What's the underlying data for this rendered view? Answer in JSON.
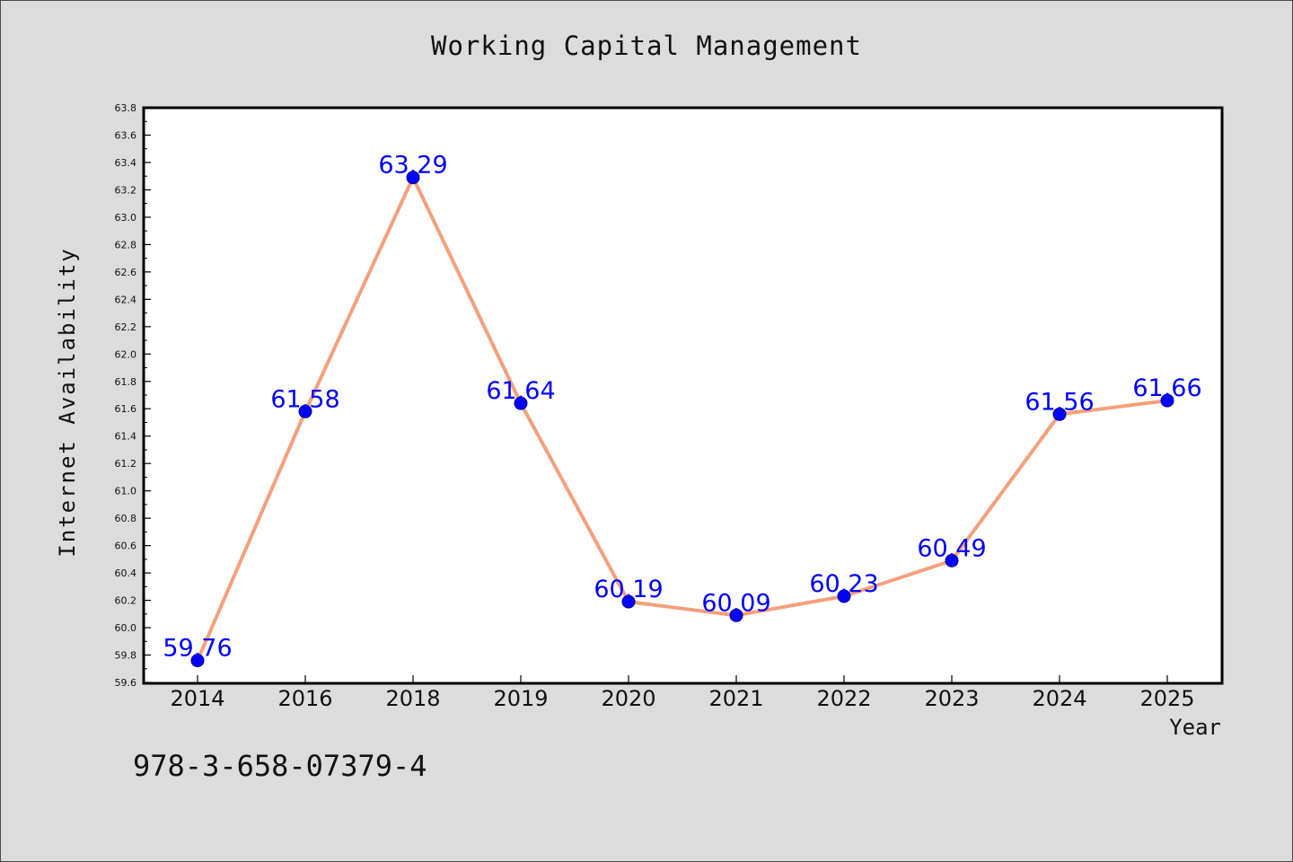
{
  "chart_data": {
    "type": "line",
    "title": "Working Capital Management",
    "xlabel": "Year",
    "ylabel": "Internet Availability",
    "categories": [
      "2014",
      "2016",
      "2018",
      "2019",
      "2020",
      "2021",
      "2022",
      "2023",
      "2024",
      "2025"
    ],
    "series": [
      {
        "values": [
          59.76,
          61.58,
          63.29,
          61.64,
          60.19,
          60.09,
          60.23,
          60.49,
          61.56,
          61.66
        ]
      }
    ],
    "data_labels": [
      "59.76",
      "61.58",
      "63.29",
      "61.64",
      "60.19",
      "60.09",
      "60.23",
      "60.49",
      "61.56",
      "61.66"
    ],
    "ylim": [
      59.6,
      63.8
    ],
    "yticks": [
      "59.6",
      "59.8",
      "60.0",
      "60.2",
      "60.4",
      "60.6",
      "60.8",
      "61.0",
      "61.2",
      "61.4",
      "61.6",
      "61.8",
      "62.0",
      "62.2",
      "62.4",
      "62.6",
      "62.8",
      "63.0",
      "63.2",
      "63.4",
      "63.6",
      "63.8"
    ],
    "grid": false,
    "colors": {
      "line": "#f4a07c",
      "marker": "#0000ff",
      "label": "#0000ff",
      "background": "#dcdcdc",
      "plot_area": "#ffffff"
    }
  },
  "footer": {
    "isbn": "978-3-658-07379-4"
  }
}
